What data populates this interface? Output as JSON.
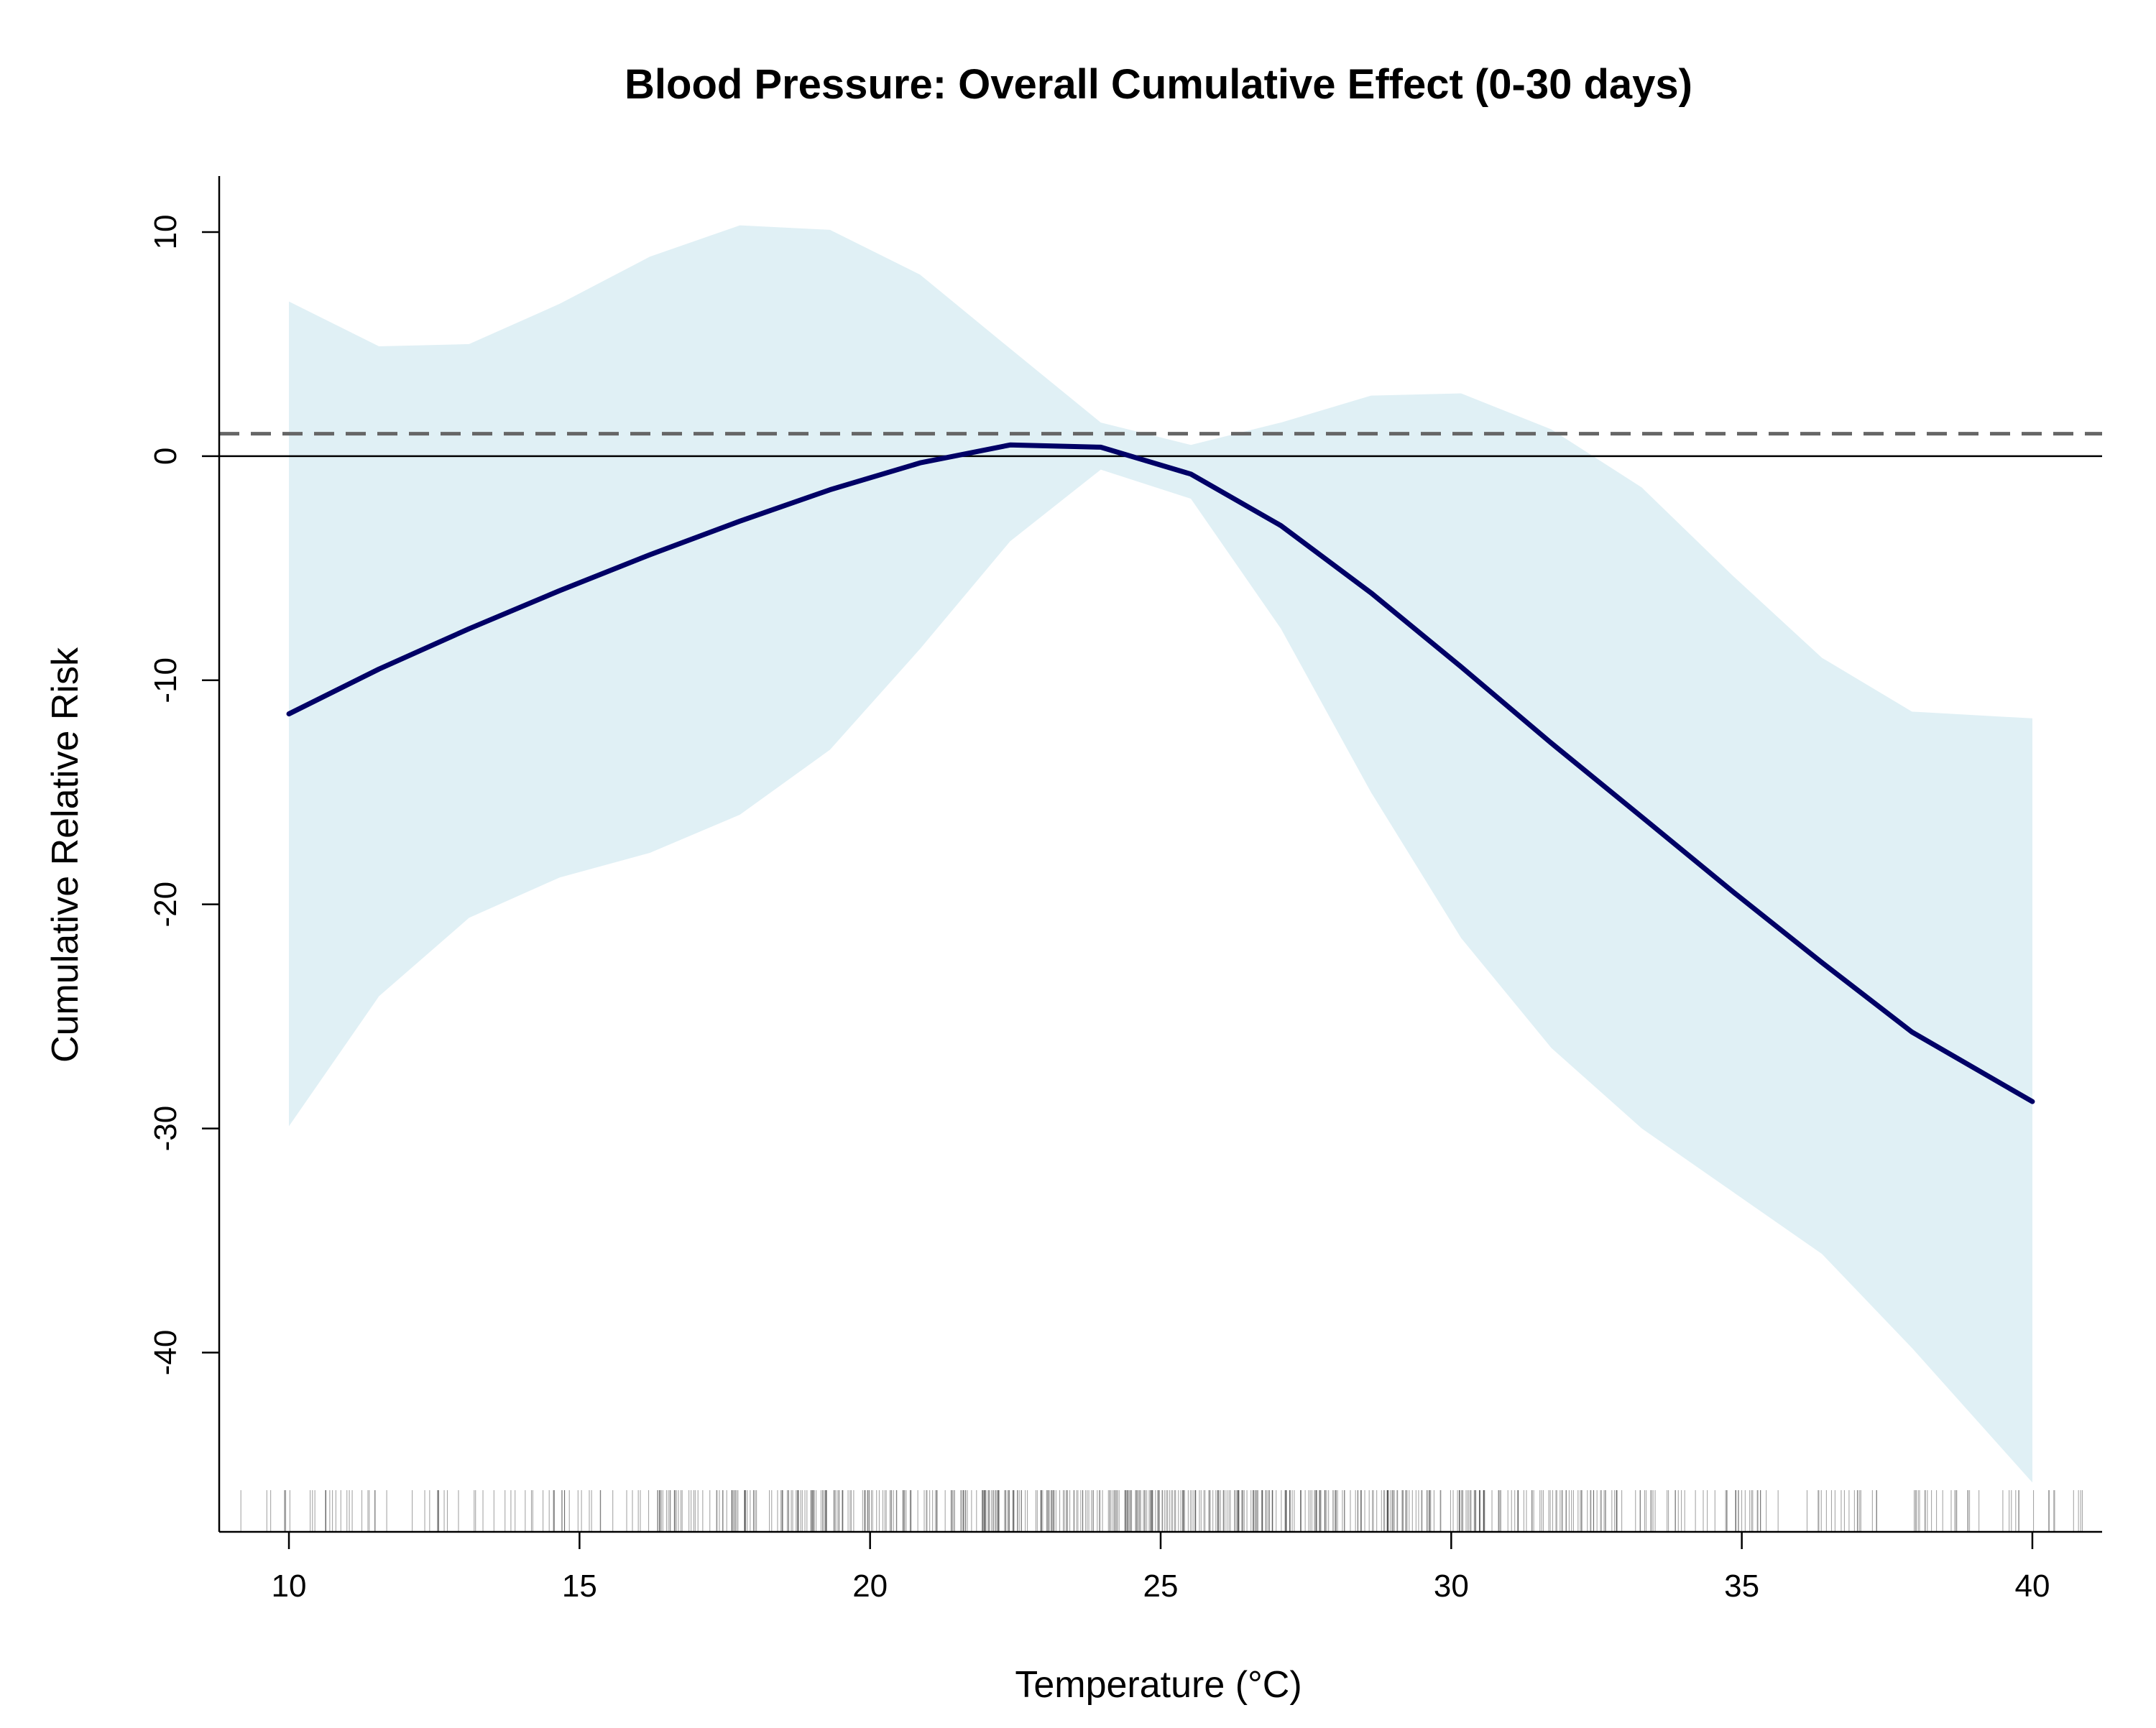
{
  "chart_data": {
    "type": "line",
    "title": "Blood Pressure: Overall Cumulative Effect (0-30 days)",
    "xlabel": "Temperature (°C)",
    "ylabel": "Cumulative Relative Risk",
    "xlim": [
      8.8,
      41.2
    ],
    "ylim": [
      -48,
      12.5
    ],
    "xticks": [
      10,
      15,
      20,
      25,
      30,
      35,
      40
    ],
    "yticks": [
      -40,
      -30,
      -20,
      -10,
      0,
      10
    ],
    "series": [
      {
        "role": "estimate",
        "color": "#000066",
        "x": [
          10,
          11.55,
          13.1,
          14.66,
          16.21,
          17.76,
          19.31,
          20.86,
          22.41,
          23.97,
          25.52,
          27.07,
          28.62,
          30.17,
          31.72,
          33.28,
          34.83,
          36.38,
          37.93,
          40
        ],
        "y": [
          -11.5,
          -9.5,
          -7.7,
          -6.0,
          -4.4,
          -2.9,
          -1.5,
          -0.3,
          0.5,
          0.4,
          -0.8,
          -3.1,
          -6.1,
          -9.4,
          -12.8,
          -16.1,
          -19.4,
          -22.6,
          -25.7,
          -28.8
        ]
      }
    ],
    "confidence_band": {
      "color": "#e0f0f5",
      "x": [
        10,
        11.55,
        13.1,
        14.66,
        16.21,
        17.76,
        19.31,
        20.86,
        22.41,
        23.97,
        25.52,
        27.07,
        28.62,
        30.17,
        31.72,
        33.28,
        34.83,
        36.38,
        37.93,
        40
      ],
      "upper": [
        6.9,
        4.9,
        5.0,
        6.8,
        8.9,
        10.3,
        10.1,
        8.1,
        4.8,
        1.5,
        0.5,
        1.5,
        2.7,
        2.8,
        1.2,
        -1.4,
        -5.3,
        -9.0,
        -11.4,
        -11.7
      ],
      "lower": [
        -29.9,
        -24.1,
        -20.6,
        -18.8,
        -17.7,
        -16.0,
        -13.1,
        -8.6,
        -3.8,
        -0.6,
        -1.9,
        -7.7,
        -15.0,
        -21.5,
        -26.4,
        -30.0,
        -32.8,
        -35.6,
        -39.8,
        -45.8
      ]
    },
    "reference_lines": [
      {
        "style": "solid",
        "color": "#000000",
        "y": 0
      },
      {
        "style": "dashed",
        "color": "#666666",
        "y": 1
      }
    ],
    "rug": {
      "color": "#000000",
      "x_range": [
        9,
        41
      ],
      "count": 700
    },
    "grid": false,
    "legend": "none"
  }
}
